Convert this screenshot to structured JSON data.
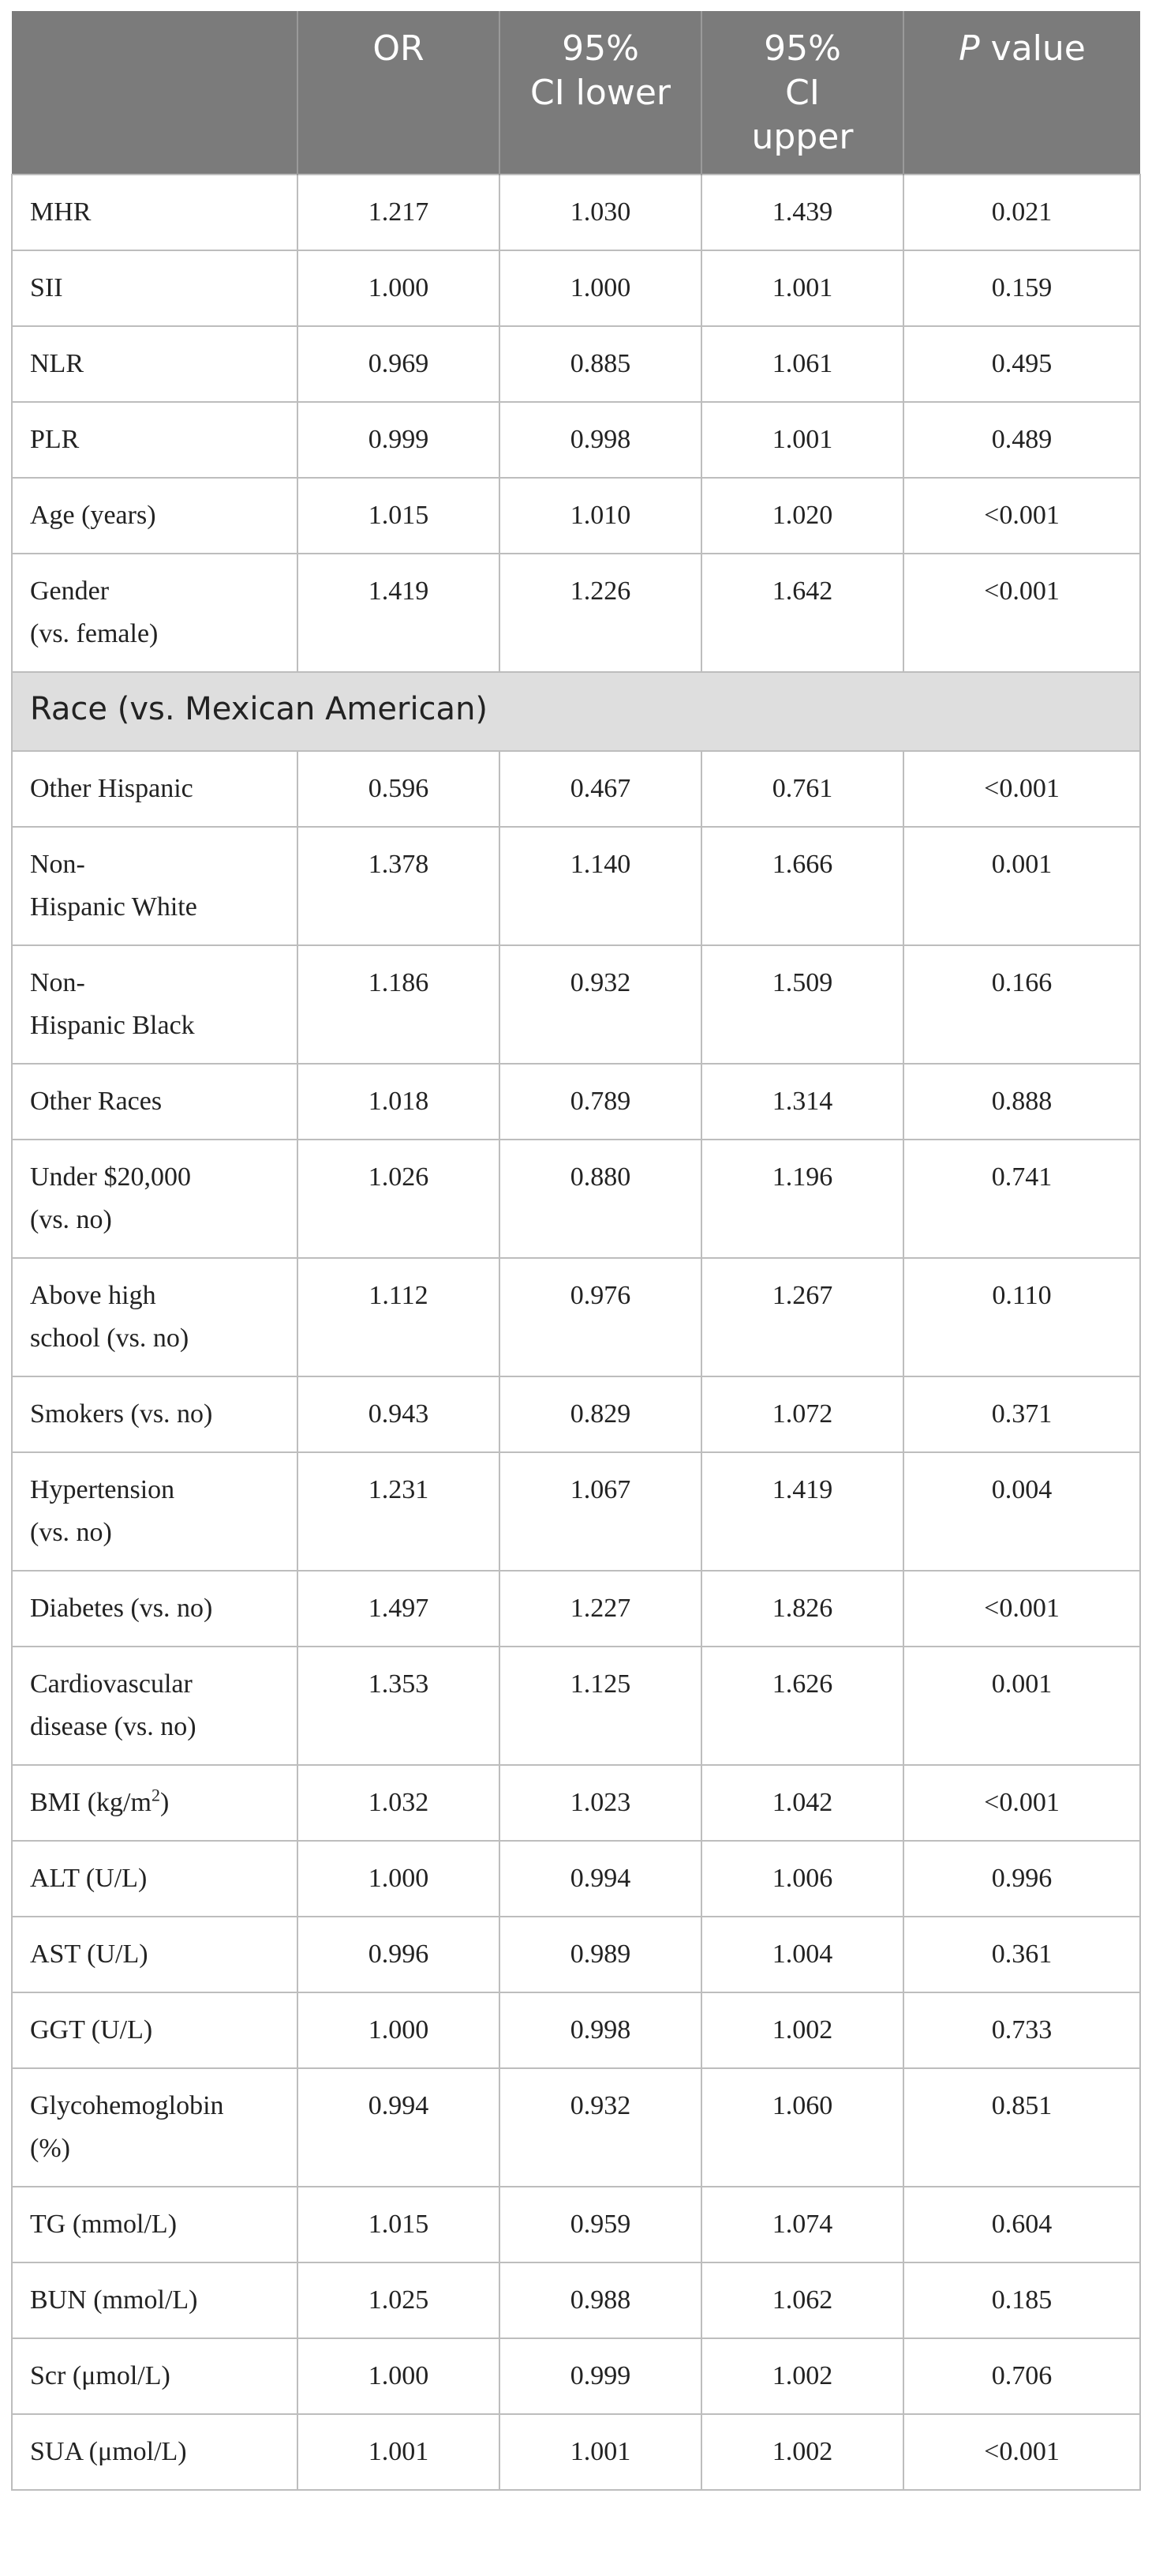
{
  "header": {
    "col0": "",
    "or": "OR",
    "ci_lower": [
      "95%",
      "CI lower"
    ],
    "ci_upper": [
      "95%",
      "CI",
      "upper"
    ],
    "p_italic": "P",
    "p_rest": " value"
  },
  "rows": [
    {
      "label": [
        "MHR"
      ],
      "or": "1.217",
      "lo": "1.030",
      "hi": "1.439",
      "p": "0.021"
    },
    {
      "label": [
        "SII"
      ],
      "or": "1.000",
      "lo": "1.000",
      "hi": "1.001",
      "p": "0.159"
    },
    {
      "label": [
        "NLR"
      ],
      "or": "0.969",
      "lo": "0.885",
      "hi": "1.061",
      "p": "0.495"
    },
    {
      "label": [
        "PLR"
      ],
      "or": "0.999",
      "lo": "0.998",
      "hi": "1.001",
      "p": "0.489"
    },
    {
      "label": [
        "Age (years)"
      ],
      "or": "1.015",
      "lo": "1.010",
      "hi": "1.020",
      "p": "<0.001"
    },
    {
      "label": [
        "Gender",
        "(vs. female)"
      ],
      "or": "1.419",
      "lo": "1.226",
      "hi": "1.642",
      "p": "<0.001"
    },
    {
      "section": "Race (vs. Mexican American)"
    },
    {
      "label": [
        "Other Hispanic"
      ],
      "or": "0.596",
      "lo": "0.467",
      "hi": "0.761",
      "p": "<0.001"
    },
    {
      "label": [
        "Non-",
        "Hispanic White"
      ],
      "or": "1.378",
      "lo": "1.140",
      "hi": "1.666",
      "p": "0.001"
    },
    {
      "label": [
        "Non-",
        "Hispanic Black"
      ],
      "or": "1.186",
      "lo": "0.932",
      "hi": "1.509",
      "p": "0.166"
    },
    {
      "label": [
        "Other Races"
      ],
      "or": "1.018",
      "lo": "0.789",
      "hi": "1.314",
      "p": "0.888"
    },
    {
      "label": [
        "Under $20,000",
        "(vs. no)"
      ],
      "or": "1.026",
      "lo": "0.880",
      "hi": "1.196",
      "p": "0.741"
    },
    {
      "label": [
        "Above high",
        "school (vs. no)"
      ],
      "or": "1.112",
      "lo": "0.976",
      "hi": "1.267",
      "p": "0.110"
    },
    {
      "label": [
        "Smokers (vs. no)"
      ],
      "or": "0.943",
      "lo": "0.829",
      "hi": "1.072",
      "p": "0.371"
    },
    {
      "label": [
        "Hypertension",
        "(vs. no)"
      ],
      "or": "1.231",
      "lo": "1.067",
      "hi": "1.419",
      "p": "0.004"
    },
    {
      "label": [
        "Diabetes (vs. no)"
      ],
      "or": "1.497",
      "lo": "1.227",
      "hi": "1.826",
      "p": "<0.001"
    },
    {
      "label": [
        "Cardiovascular",
        "disease (vs. no)"
      ],
      "or": "1.353",
      "lo": "1.125",
      "hi": "1.626",
      "p": "0.001"
    },
    {
      "label": [
        "BMI (kg/m"
      ],
      "sup": "2",
      "label_after": ")",
      "or": "1.032",
      "lo": "1.023",
      "hi": "1.042",
      "p": "<0.001"
    },
    {
      "label": [
        "ALT (U/L)"
      ],
      "or": "1.000",
      "lo": "0.994",
      "hi": "1.006",
      "p": "0.996"
    },
    {
      "label": [
        "AST (U/L)"
      ],
      "or": "0.996",
      "lo": "0.989",
      "hi": "1.004",
      "p": "0.361"
    },
    {
      "label": [
        "GGT (U/L)"
      ],
      "or": "1.000",
      "lo": "0.998",
      "hi": "1.002",
      "p": "0.733"
    },
    {
      "label": [
        "Glycohemoglobin",
        "(%)"
      ],
      "or": "0.994",
      "lo": "0.932",
      "hi": "1.060",
      "p": "0.851"
    },
    {
      "label": [
        "TG (mmol/L)"
      ],
      "or": "1.015",
      "lo": "0.959",
      "hi": "1.074",
      "p": "0.604"
    },
    {
      "label": [
        "BUN (mmol/L)"
      ],
      "or": "1.025",
      "lo": "0.988",
      "hi": "1.062",
      "p": "0.185"
    },
    {
      "label": [
        "Scr (μmol/L)"
      ],
      "or": "1.000",
      "lo": "0.999",
      "hi": "1.002",
      "p": "0.706"
    },
    {
      "label": [
        "SUA (μmol/L)"
      ],
      "or": "1.001",
      "lo": "1.001",
      "hi": "1.002",
      "p": "<0.001"
    }
  ]
}
